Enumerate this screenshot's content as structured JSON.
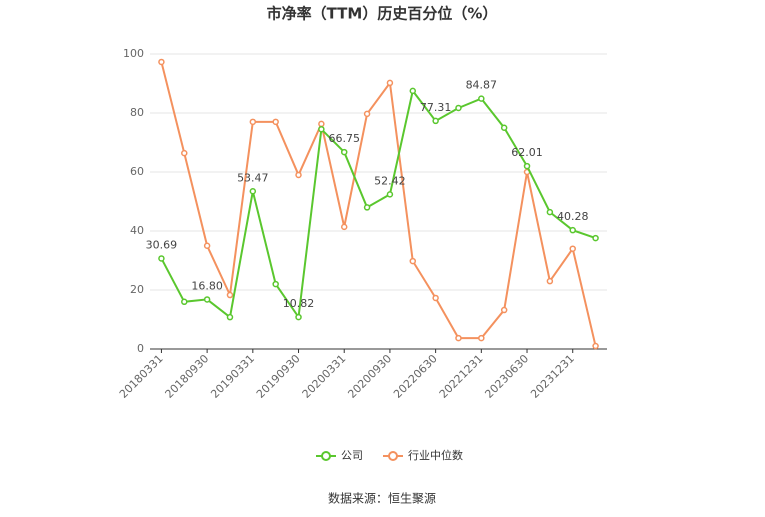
{
  "chart_data": {
    "type": "line",
    "title": "市净率（TTM）历史百分位（%）",
    "source": "数据来源：恒生聚源",
    "categories": [
      "20180331",
      null,
      "20180930",
      null,
      "20190331",
      null,
      "20190930",
      null,
      "20200331",
      null,
      "20200930",
      null,
      "20220630",
      null,
      "20221231",
      null,
      "20230630",
      null,
      "20231231",
      null
    ],
    "series": [
      {
        "name": "公司",
        "color": "#5ac72e",
        "values": [
          30.69,
          16,
          16.8,
          10.8,
          53.47,
          22,
          10.82,
          74.5,
          66.75,
          48,
          52.42,
          87.5,
          77.31,
          81.7,
          84.87,
          75,
          62.01,
          46.4,
          40.28,
          37.6
        ],
        "value_labels": [
          "30.69",
          null,
          "16.80",
          null,
          "53.47",
          null,
          "10.82",
          null,
          "66.75",
          null,
          "52.42",
          null,
          "77.31",
          null,
          "84.87",
          null,
          "62.01",
          null,
          "40.28",
          null
        ]
      },
      {
        "name": "行业中位数",
        "color": "#f4915e",
        "values": [
          97.3,
          66.4,
          35,
          18.3,
          77,
          77,
          59,
          76.3,
          41.4,
          79.7,
          90.2,
          29.8,
          17.3,
          3.7,
          3.7,
          13.2,
          60,
          23,
          34,
          1
        ]
      }
    ],
    "ylim": [
      0,
      100
    ],
    "yticks": [
      0,
      20,
      40,
      60,
      80,
      100
    ],
    "grid": true,
    "legend": "bottom"
  }
}
